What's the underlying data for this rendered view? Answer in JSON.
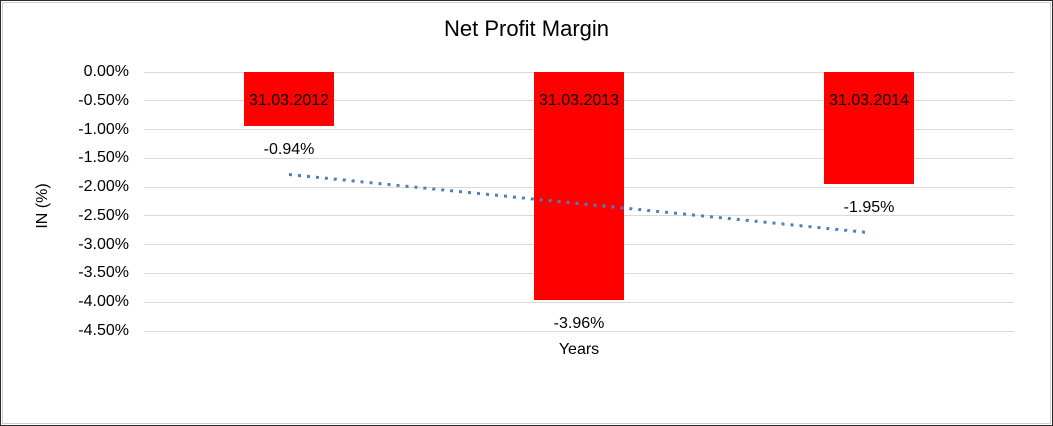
{
  "chart_data": {
    "type": "bar",
    "title": "Net Profit Margin",
    "categories": [
      "31.03.2012",
      "31.03.2013",
      "31.03.2014"
    ],
    "values": [
      -0.94,
      -3.96,
      -1.95
    ],
    "data_labels": [
      "-0.94%",
      "-3.96%",
      "-1.95%"
    ],
    "xlabel": "Years",
    "ylabel": "IN (%)",
    "ylim": [
      0,
      -4.5
    ],
    "yticks": {
      "values": [
        0,
        -0.5,
        -1.0,
        -1.5,
        -2.0,
        -2.5,
        -3.0,
        -3.5,
        -4.0,
        -4.5
      ],
      "labels": [
        "0.00%",
        "-0.50%",
        "-1.00%",
        "-1.50%",
        "-2.00%",
        "-2.50%",
        "-3.00%",
        "-3.50%",
        "-4.00%",
        "-4.50%"
      ]
    },
    "grid": true,
    "legend": "none",
    "bar_color": "#FF0000",
    "gridline_color": "#D9D9D9",
    "category_label_level": -0.5,
    "trendline": {
      "type": "linear",
      "style": "dotted",
      "color": "#4E81BC",
      "start_value": -1.78,
      "end_value": -2.79
    }
  }
}
